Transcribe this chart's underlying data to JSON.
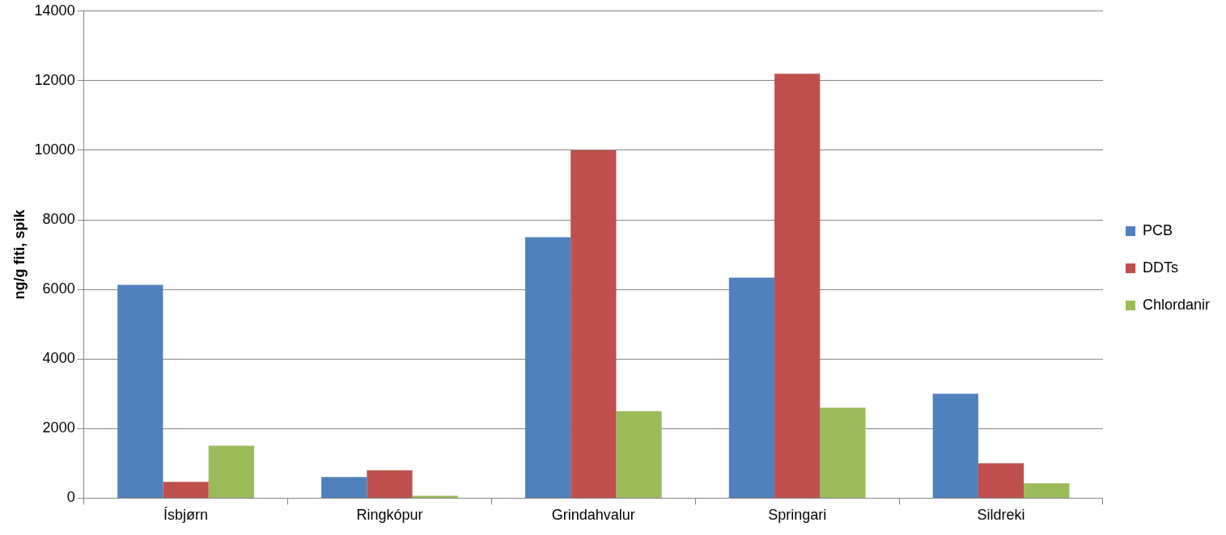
{
  "chart_data": {
    "type": "bar",
    "ylabel": "ng/g fiti, spik",
    "categories": [
      "Ísbjørn",
      "Ringkópur",
      "Grindahvalur",
      "Springari",
      "Sildreki"
    ],
    "series": [
      {
        "name": "PCB",
        "color": "#4f81bd",
        "values": [
          6130,
          610,
          7500,
          6340,
          3000
        ]
      },
      {
        "name": "DDTs",
        "color": "#c0504d",
        "values": [
          470,
          800,
          10000,
          12200,
          1000
        ]
      },
      {
        "name": "Chlordanir",
        "color": "#9bbb59",
        "values": [
          1510,
          70,
          2500,
          2600,
          430
        ]
      }
    ],
    "ylim": [
      0,
      14000
    ],
    "yticks": [
      0,
      2000,
      4000,
      6000,
      8000,
      10000,
      12000,
      14000
    ],
    "grid": "y",
    "legend": "right"
  }
}
